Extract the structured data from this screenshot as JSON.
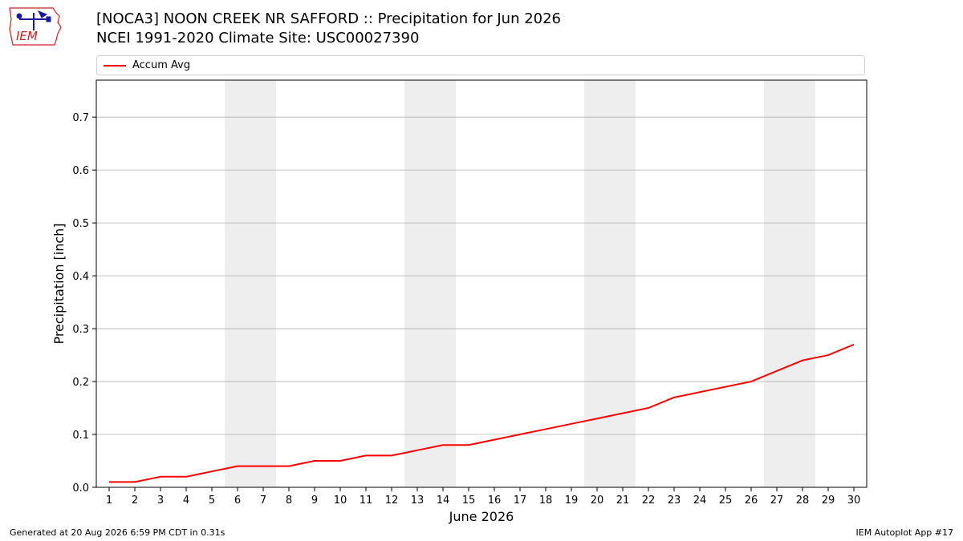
{
  "logo": {
    "text": "IEM"
  },
  "header": {
    "title_line1": "[NOCA3] NOON CREEK NR SAFFORD :: Precipitation for Jun 2026",
    "title_line2": "NCEI 1991-2020 Climate Site: USC00027390"
  },
  "footer": {
    "generated": "Generated at 20 Aug 2026 6:59 PM CDT in 0.31s",
    "app": "IEM Autoplot App #17"
  },
  "colors": {
    "line": "#ff0000",
    "weekend_band": "#eeeeee",
    "grid": "#b0b0b0",
    "logo_red": "#d02020",
    "logo_blue": "#1a1aa0"
  },
  "chart_data": {
    "type": "line",
    "xlabel": "June 2026",
    "ylabel": "Precipitation [inch]",
    "xlim": [
      0.5,
      30.5
    ],
    "ylim": [
      0,
      0.77
    ],
    "x_ticks": [
      1,
      2,
      3,
      4,
      5,
      6,
      7,
      8,
      9,
      10,
      11,
      12,
      13,
      14,
      15,
      16,
      17,
      18,
      19,
      20,
      21,
      22,
      23,
      24,
      25,
      26,
      27,
      28,
      29,
      30
    ],
    "y_ticks": [
      0.0,
      0.1,
      0.2,
      0.3,
      0.4,
      0.5,
      0.6,
      0.7
    ],
    "y_tick_labels": [
      "0.0",
      "0.1",
      "0.2",
      "0.3",
      "0.4",
      "0.5",
      "0.6",
      "0.7"
    ],
    "grid": "horizontal",
    "legend_placement": "top",
    "weekend_bands": [
      [
        6,
        7
      ],
      [
        13,
        14
      ],
      [
        20,
        21
      ],
      [
        27,
        28
      ]
    ],
    "series": [
      {
        "name": "Accum Avg",
        "x": [
          1,
          2,
          3,
          4,
          5,
          6,
          7,
          8,
          9,
          10,
          11,
          12,
          13,
          14,
          15,
          16,
          17,
          18,
          19,
          20,
          21,
          22,
          23,
          24,
          25,
          26,
          27,
          28,
          29,
          30
        ],
        "values": [
          0.01,
          0.01,
          0.02,
          0.02,
          0.03,
          0.04,
          0.04,
          0.04,
          0.05,
          0.05,
          0.06,
          0.06,
          0.07,
          0.08,
          0.08,
          0.09,
          0.1,
          0.11,
          0.12,
          0.13,
          0.14,
          0.15,
          0.17,
          0.18,
          0.19,
          0.2,
          0.22,
          0.24,
          0.25,
          0.27
        ]
      }
    ]
  }
}
